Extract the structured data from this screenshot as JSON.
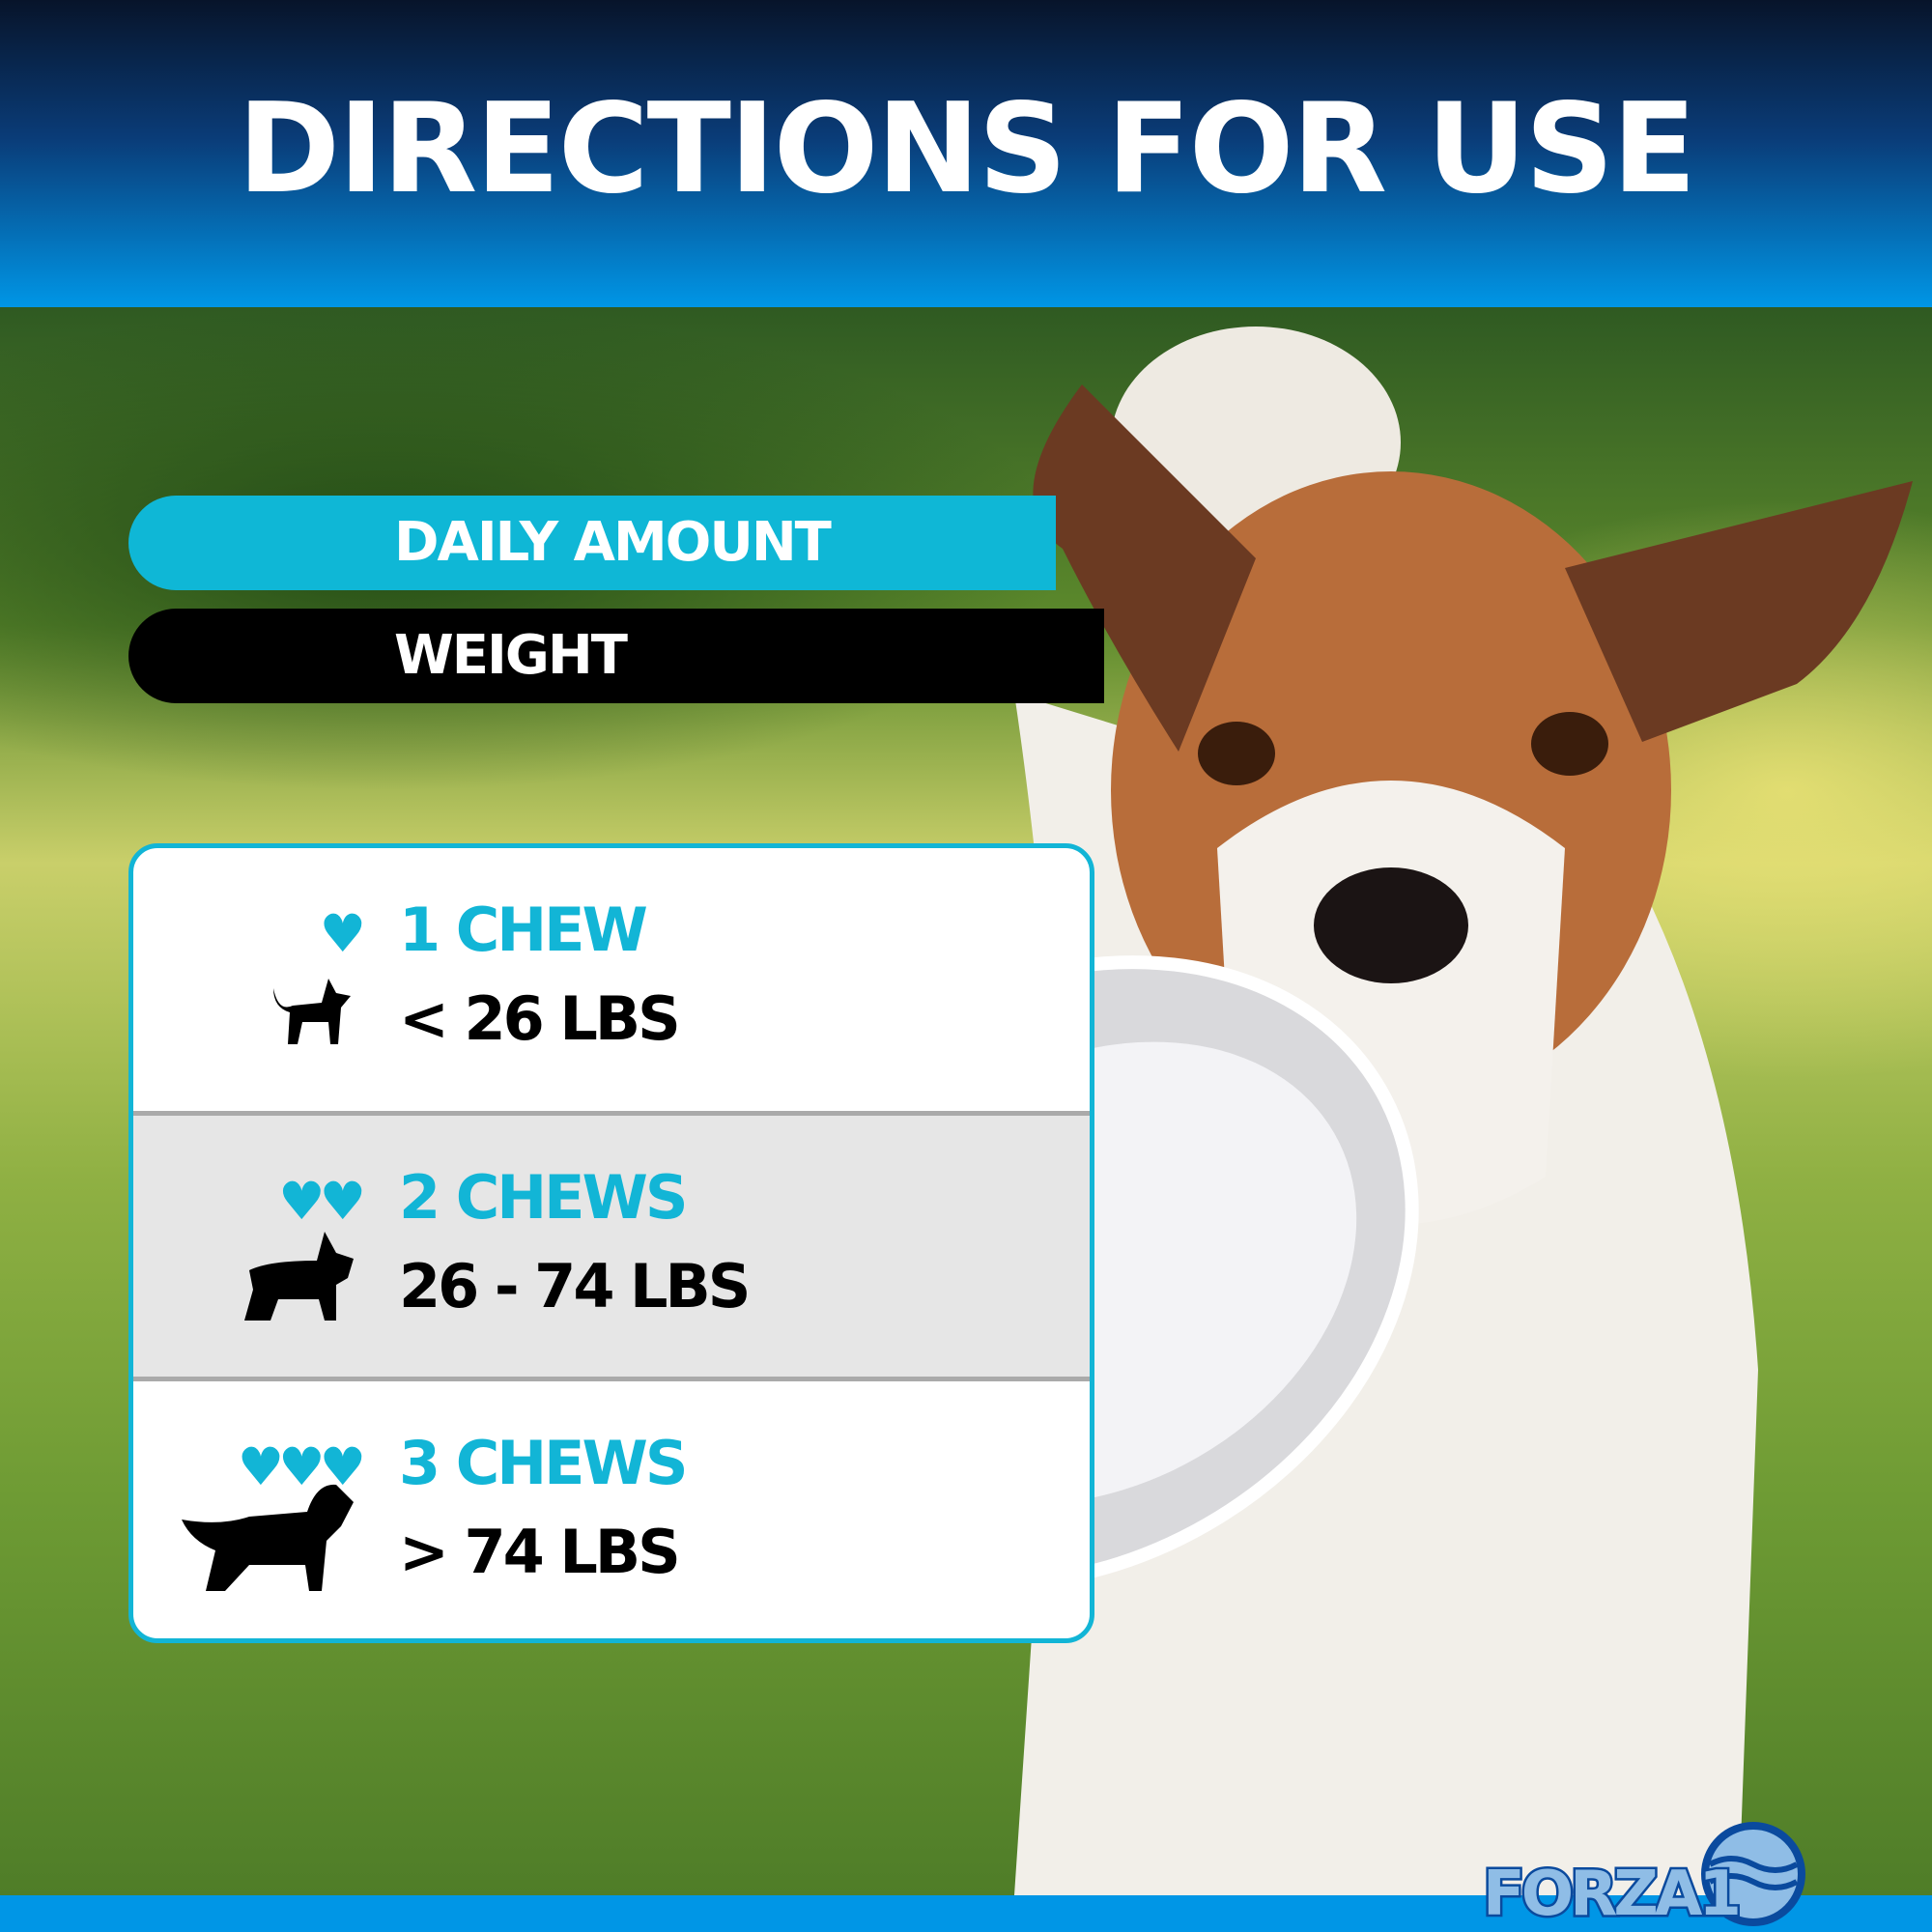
{
  "header": {
    "title": "DIRECTIONS FOR USE"
  },
  "labels": {
    "daily_amount": "DAILY AMOUNT",
    "weight": "WEIGHT"
  },
  "rows": [
    {
      "amount": "1 CHEW",
      "weight": "< 26 LBS",
      "hearts": "♥",
      "dog_icon": "small-dog-icon"
    },
    {
      "amount": "2 CHEWS",
      "weight": "26 - 74 LBS",
      "hearts": "♥♥",
      "dog_icon": "medium-dog-icon"
    },
    {
      "amount": "3 CHEWS",
      "weight": "> 74 LBS",
      "hearts": "♥♥♥",
      "dog_icon": "large-dog-icon"
    }
  ],
  "brand": {
    "logo": "FORZA10"
  },
  "colors": {
    "accent": "#12b5d6",
    "header_top": "#07142a",
    "header_bottom": "#0096e6",
    "logo": "#0a4a9e"
  }
}
